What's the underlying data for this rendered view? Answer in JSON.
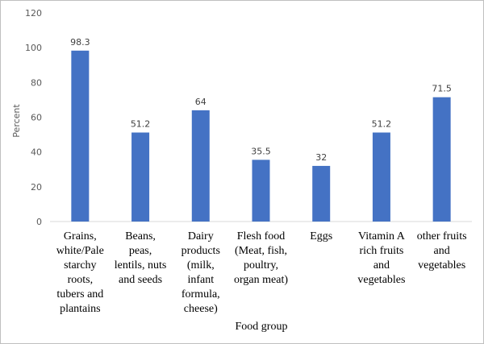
{
  "chart_data": {
    "type": "bar",
    "categories": [
      "Grains, white/Pale starchy roots, tubers and plantains",
      "Beans, peas, lentils, nuts and seeds",
      "Dairy products (milk, infant formula, cheese)",
      "Flesh food (Meat, fish, poultry, organ meat)",
      "Eggs",
      "Vitamin A rich fruits and vegetables",
      "other fruits and vegetables"
    ],
    "category_lines": [
      [
        "Grains,",
        "white/Pale",
        "starchy",
        "roots,",
        "tubers and",
        "plantains"
      ],
      [
        "Beans,",
        "peas,",
        "lentils, nuts",
        "and seeds"
      ],
      [
        "Dairy",
        "products",
        "(milk,",
        "infant",
        "formula,",
        "cheese)"
      ],
      [
        "Flesh food",
        "(Meat, fish,",
        "poultry,",
        "organ meat)"
      ],
      [
        "Eggs"
      ],
      [
        "Vitamin A",
        "rich fruits",
        "and",
        "vegetables"
      ],
      [
        "other fruits",
        "and",
        "vegetables"
      ]
    ],
    "values": [
      98.3,
      51.2,
      64,
      35.5,
      32,
      51.2,
      71.5
    ],
    "data_labels": [
      "98.3",
      "51.2",
      "64",
      "35.5",
      "32",
      "51.2",
      "71.5"
    ],
    "title": "",
    "xlabel": "Food group",
    "ylabel": "Percent",
    "ylim": [
      0,
      120
    ],
    "yticks": [
      0,
      20,
      40,
      60,
      80,
      100,
      120
    ],
    "grid": false,
    "bar_color": "#4472c4",
    "axis_color": "#d9d9d9"
  }
}
